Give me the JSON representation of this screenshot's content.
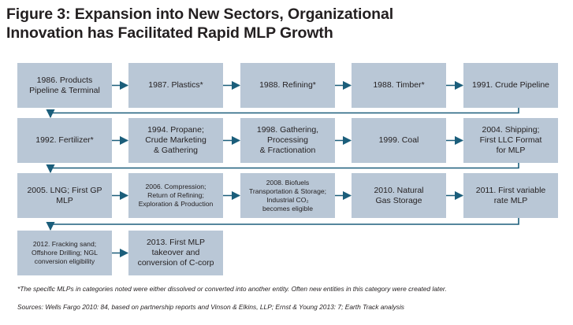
{
  "figure": {
    "title_line1": "Figure 3: Expansion into New Sectors, Organizational",
    "title_line2": "Innovation has Facilitated Rapid MLP Growth"
  },
  "colors": {
    "box_fill": "#b9c7d6",
    "arrow": "#1b5e7b",
    "text": "#231f20"
  },
  "steps": [
    {
      "label": "1986. Products\nPipeline & Terminal"
    },
    {
      "label": "1987. Plastics*"
    },
    {
      "label": "1988. Refining*"
    },
    {
      "label": "1988. Timber*"
    },
    {
      "label": "1991. Crude Pipeline"
    },
    {
      "label": "1992. Fertilizer*"
    },
    {
      "label": "1994. Propane;\nCrude Marketing\n& Gathering"
    },
    {
      "label": "1998. Gathering,\nProcessing\n& Fractionation"
    },
    {
      "label": "1999. Coal"
    },
    {
      "label": "2004. Shipping;\nFirst LLC Format\nfor MLP"
    },
    {
      "label": "2005. LNG; First GP\nMLP"
    },
    {
      "label": "2006. Compression;\nReturn of Refining;\nExploration & Production",
      "small": true
    },
    {
      "label": "2008. Biofuels\nTransportation & Storage;\nIndustrial CO₂\nbecomes eligible",
      "small": true
    },
    {
      "label": "2010. Natural\nGas Storage"
    },
    {
      "label": "2011. First variable\nrate MLP"
    },
    {
      "label": "2012. Fracking sand;\nOffshore Drilling; NGL\nconversion eligibility",
      "small": true
    },
    {
      "label": "2013. First MLP\ntakeover and\nconversion of C-corp"
    }
  ],
  "footnote": "*The specific MLPs in categories noted were either dissolved or converted into another entity.  Often new entities in this category were created later.",
  "sources": "Sources:  Wells Fargo 2010: 84, based on partnership reports and Vinson & Elkins, LLP; Ernst & Young 2013: 7; Earth Track analysis"
}
